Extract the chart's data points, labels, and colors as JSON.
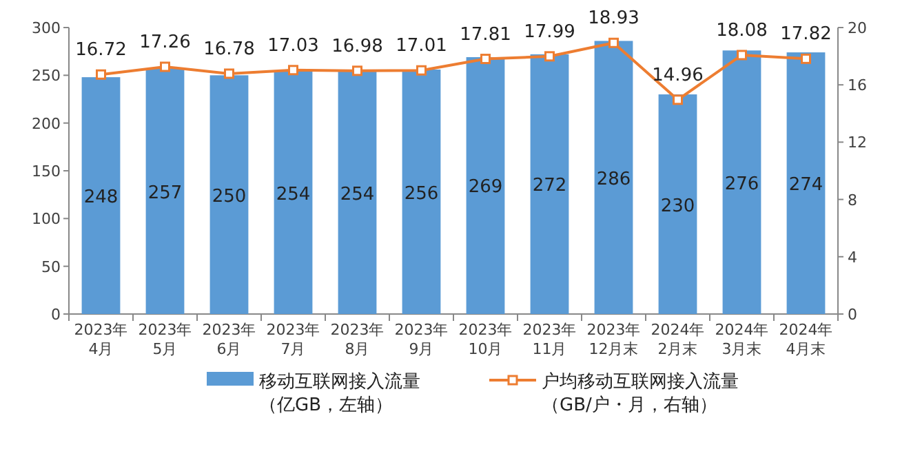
{
  "chart_data": {
    "type": "bar",
    "categories": [
      "2023年\n4月",
      "2023年\n5月",
      "2023年\n6月",
      "2023年\n7月",
      "2023年\n8月",
      "2023年\n9月",
      "2023年\n10月",
      "2023年\n11月",
      "2023年\n12月末",
      "2024年\n2月末",
      "2024年\n3月末",
      "2024年\n4月末"
    ],
    "series": [
      {
        "name": "移动互联网接入流量（亿GB，左轴）",
        "color": "#5b9bd5",
        "values": [
          248,
          257,
          250,
          254,
          254,
          256,
          269,
          272,
          286,
          230,
          276,
          274
        ]
      },
      {
        "name": "户均移动互联网接入流量（GB/户・月，右轴）",
        "type": "line",
        "axis": "y2",
        "color": "#ed7d31",
        "marker": "square",
        "values": [
          16.72,
          17.26,
          16.78,
          17.03,
          16.98,
          17.01,
          17.81,
          17.99,
          18.93,
          14.96,
          18.08,
          17.82
        ]
      }
    ],
    "ylim": [
      0,
      300
    ],
    "yticks": [
      0,
      50,
      100,
      150,
      200,
      250,
      300
    ],
    "y2lim": [
      0,
      20
    ],
    "y2ticks": [
      0,
      4,
      8,
      12,
      16,
      20
    ],
    "data_labels": true,
    "grid": false,
    "legend": "bottom"
  }
}
